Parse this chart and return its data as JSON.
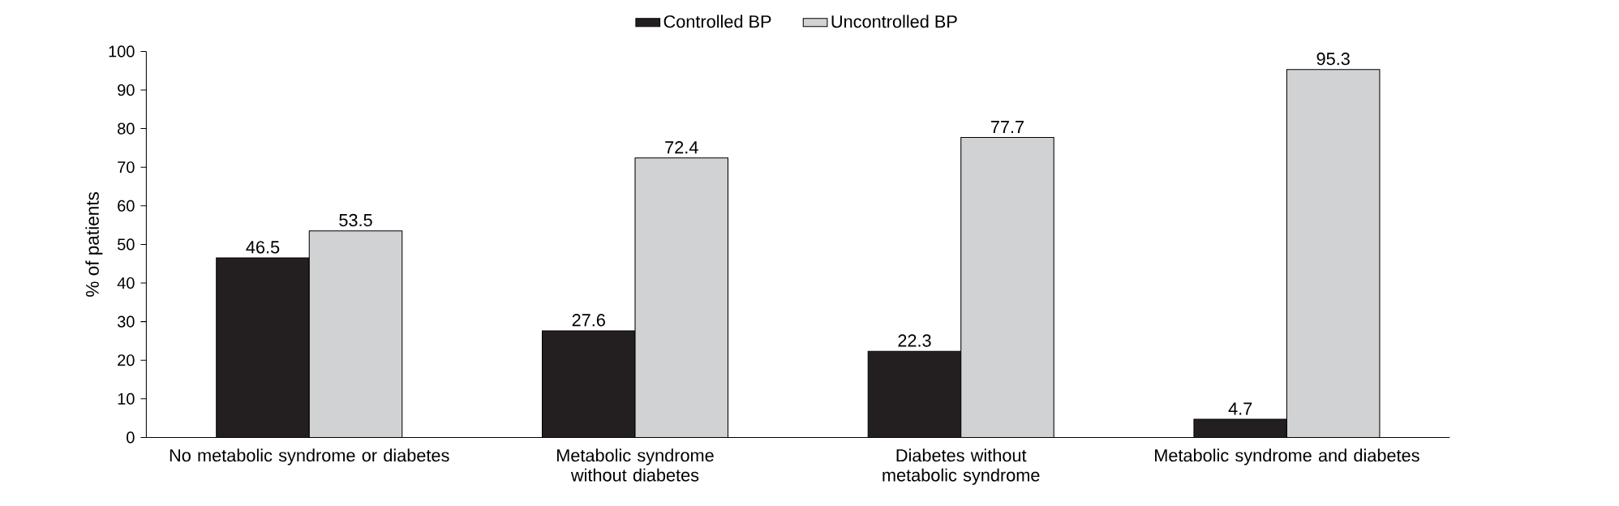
{
  "chart_data": {
    "type": "bar",
    "ylabel": "% of patients",
    "categories": [
      "No metabolic syndrome or diabetes",
      "Metabolic syndrome without diabetes",
      "Diabetes without metabolic syndrome",
      "Metabolic syndrome and diabetes"
    ],
    "series": [
      {
        "name": "Controlled BP",
        "color": "#231f20",
        "values": [
          46.5,
          27.6,
          22.3,
          4.7
        ]
      },
      {
        "name": "Uncontrolled BP",
        "color": "#d1d2d4",
        "values": [
          53.5,
          72.4,
          77.7,
          95.3
        ]
      }
    ],
    "ylim": [
      0,
      100
    ],
    "yticks": [
      0,
      10,
      20,
      30,
      40,
      50,
      60,
      70,
      80,
      90,
      100
    ],
    "data_labels": true,
    "legend": "top",
    "grid": false
  }
}
